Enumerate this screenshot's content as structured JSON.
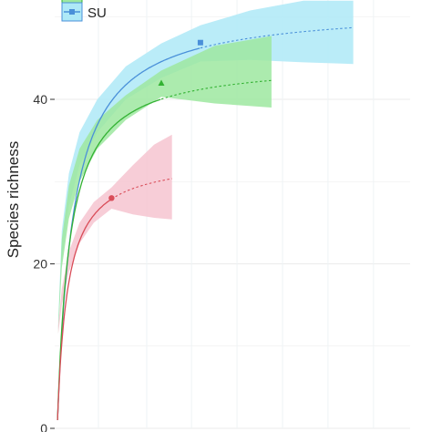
{
  "chart_data": {
    "type": "line",
    "ylabel": "Species richness",
    "y_ticks": [
      "0",
      "20",
      "40"
    ],
    "ylim": [
      0,
      52
    ],
    "xlim": [
      0,
      100
    ],
    "grid": true,
    "legend_position": "top-left",
    "series": [
      {
        "name": "SU",
        "color": "#4a90d9",
        "band_color": "#aee9f7",
        "marker": "square",
        "observed_x": 41,
        "observed_y": 46.9,
        "asymptote": 51.3,
        "half_saturation": 4.5,
        "x_end": 84,
        "upper": [
          [
            1,
            13
          ],
          [
            2,
            24
          ],
          [
            4,
            31
          ],
          [
            7,
            36
          ],
          [
            12,
            40
          ],
          [
            20,
            44
          ],
          [
            30,
            46.8
          ],
          [
            41,
            49
          ],
          [
            55,
            50.8
          ],
          [
            70,
            52
          ],
          [
            84,
            52
          ]
        ],
        "lower": [
          [
            1,
            12
          ],
          [
            2,
            20
          ],
          [
            4,
            27
          ],
          [
            7,
            32
          ],
          [
            12,
            36
          ],
          [
            20,
            40
          ],
          [
            30,
            42.6
          ],
          [
            41,
            44.6
          ],
          [
            55,
            44.8
          ],
          [
            70,
            44.5
          ],
          [
            84,
            44.3
          ]
        ]
      },
      {
        "name": "",
        "color": "#33b233",
        "band_color": "#9de8a0",
        "marker": "triangle",
        "observed_x": 30,
        "observed_y": 42,
        "asymptote": 44.7,
        "half_saturation": 3.5,
        "x_end": 61,
        "upper": [
          [
            1,
            12.5
          ],
          [
            2,
            23
          ],
          [
            4,
            29.5
          ],
          [
            7,
            34
          ],
          [
            12,
            37.5
          ],
          [
            20,
            40.5
          ],
          [
            30,
            43.5
          ],
          [
            45,
            46.5
          ],
          [
            61,
            47.7
          ]
        ],
        "lower": [
          [
            1,
            11.5
          ],
          [
            2,
            19.5
          ],
          [
            4,
            25.5
          ],
          [
            7,
            30
          ],
          [
            12,
            34
          ],
          [
            20,
            37.5
          ],
          [
            30,
            40.3
          ],
          [
            45,
            39.5
          ],
          [
            61,
            39
          ]
        ]
      },
      {
        "name": "",
        "color": "#d94c58",
        "band_color": "#f6c4d0",
        "marker": "circle",
        "observed_x": 16,
        "observed_y": 28,
        "asymptote": 33,
        "half_saturation": 2.9,
        "x_end": 33,
        "upper": [
          [
            1,
            12.5
          ],
          [
            2,
            17
          ],
          [
            4,
            21.5
          ],
          [
            7,
            25
          ],
          [
            11,
            27.5
          ],
          [
            16,
            29.3
          ],
          [
            22,
            32
          ],
          [
            28,
            34.5
          ],
          [
            33,
            35.7
          ]
        ],
        "lower": [
          [
            1,
            11.5
          ],
          [
            2,
            15
          ],
          [
            4,
            19
          ],
          [
            7,
            22.5
          ],
          [
            11,
            25
          ],
          [
            16,
            26.7
          ],
          [
            22,
            26
          ],
          [
            28,
            25.6
          ],
          [
            33,
            25.4
          ]
        ]
      }
    ]
  }
}
